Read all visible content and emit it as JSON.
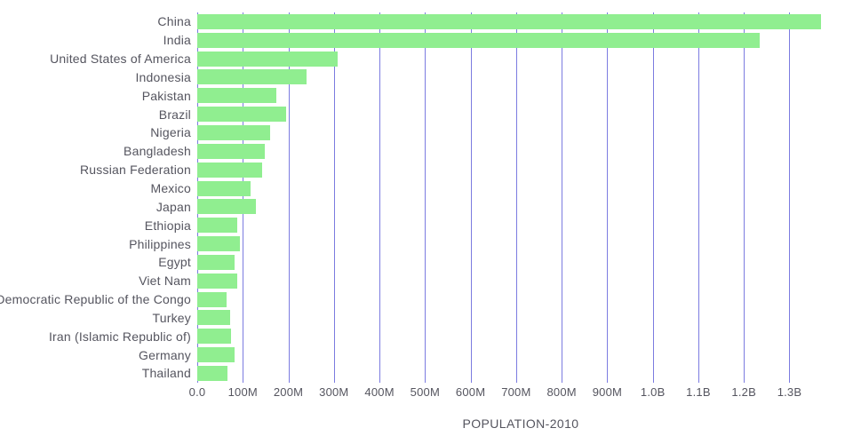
{
  "chart_data": {
    "type": "bar",
    "orientation": "horizontal",
    "title": "",
    "xlabel": "POPULATION-2010",
    "ylabel": "",
    "categories": [
      "China",
      "India",
      "United States of America",
      "Indonesia",
      "Pakistan",
      "Brazil",
      "Nigeria",
      "Bangladesh",
      "Russian Federation",
      "Mexico",
      "Japan",
      "Ethiopia",
      "Philippines",
      "Egypt",
      "Viet Nam",
      "Democratic Republic of the Congo",
      "Turkey",
      "Iran (Islamic Republic of)",
      "Germany",
      "Thailand"
    ],
    "values_millions": [
      1370,
      1234,
      309,
      240,
      174,
      195,
      159,
      148,
      143,
      117,
      128,
      87,
      93,
      82,
      88,
      64,
      72,
      74,
      82,
      66
    ],
    "xlim_millions": [
      0,
      1420
    ],
    "x_ticks": [
      {
        "value": 0,
        "label": "0.0"
      },
      {
        "value": 100,
        "label": "100M"
      },
      {
        "value": 200,
        "label": "200M"
      },
      {
        "value": 300,
        "label": "300M"
      },
      {
        "value": 400,
        "label": "400M"
      },
      {
        "value": 500,
        "label": "500M"
      },
      {
        "value": 600,
        "label": "600M"
      },
      {
        "value": 700,
        "label": "700M"
      },
      {
        "value": 800,
        "label": "800M"
      },
      {
        "value": 900,
        "label": "900M"
      },
      {
        "value": 1000,
        "label": "1.0B"
      },
      {
        "value": 1100,
        "label": "1.1B"
      },
      {
        "value": 1200,
        "label": "1.2B"
      },
      {
        "value": 1300,
        "label": "1.3B"
      }
    ],
    "grid": "vertical",
    "legend": "none",
    "colors": {
      "bar": "#90ee90",
      "gridline": "#7b7be0",
      "text": "#55555f",
      "background": "#ffffff"
    }
  }
}
